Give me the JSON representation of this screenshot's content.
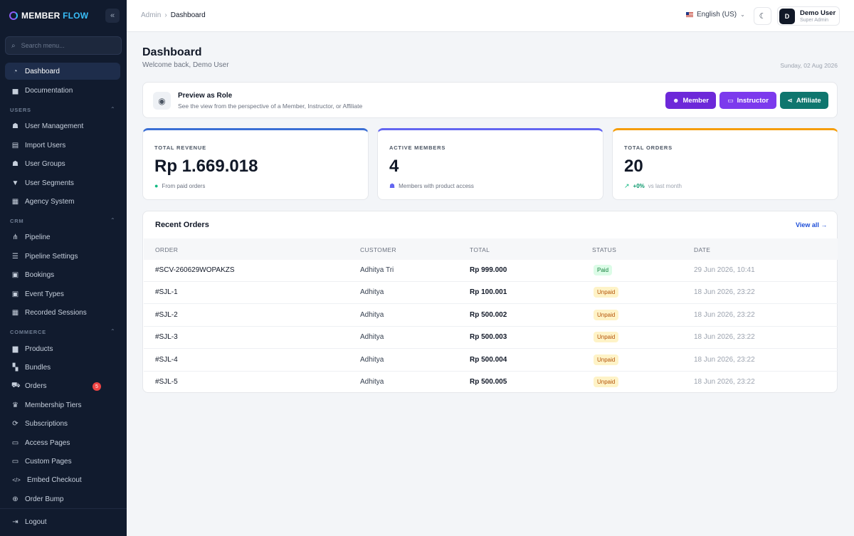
{
  "app": {
    "brand_main": "MEMBER",
    "brand_accent": "FLOW",
    "collapse_icon": "«"
  },
  "sidebar": {
    "search_placeholder": "Search menu...",
    "items": [
      {
        "id": "dashboard",
        "label": "Dashboard",
        "icon": "dashboard-icon",
        "glyph": "◔",
        "active": true
      },
      {
        "id": "documentation",
        "label": "Documentation",
        "icon": "book-icon",
        "glyph": "▅"
      },
      {
        "id": "user-management",
        "label": "User Management",
        "icon": "users-icon",
        "glyph": "☗"
      },
      {
        "id": "import-users",
        "label": "Import Users",
        "icon": "file-import-icon",
        "glyph": "▤"
      },
      {
        "id": "user-groups",
        "label": "User Groups",
        "icon": "group-icon",
        "glyph": "☗"
      },
      {
        "id": "user-segments",
        "label": "User Segments",
        "icon": "filter-icon",
        "glyph": "▼"
      },
      {
        "id": "agency-system",
        "label": "Agency System",
        "icon": "building-icon",
        "glyph": "▦"
      },
      {
        "id": "pipeline",
        "label": "Pipeline",
        "icon": "pipeline-icon",
        "glyph": "⋔"
      },
      {
        "id": "pipeline-settings",
        "label": "Pipeline Settings",
        "icon": "sliders-icon",
        "glyph": "☰"
      },
      {
        "id": "bookings",
        "label": "Bookings",
        "icon": "calendar-icon",
        "glyph": "▣"
      },
      {
        "id": "event-types",
        "label": "Event Types",
        "icon": "calendar-check-icon",
        "glyph": "▣"
      },
      {
        "id": "recorded-sessions",
        "label": "Recorded Sessions",
        "icon": "film-icon",
        "glyph": "▦"
      },
      {
        "id": "products",
        "label": "Products",
        "icon": "box-icon",
        "glyph": "▆"
      },
      {
        "id": "bundles",
        "label": "Bundles",
        "icon": "boxes-icon",
        "glyph": "▚"
      },
      {
        "id": "orders",
        "label": "Orders",
        "icon": "cart-icon",
        "glyph": "⛟",
        "badge": "5"
      },
      {
        "id": "membership-tiers",
        "label": "Membership Tiers",
        "icon": "crown-icon",
        "glyph": "♛"
      },
      {
        "id": "subscriptions",
        "label": "Subscriptions",
        "icon": "refresh-icon",
        "glyph": "⟳"
      },
      {
        "id": "access-pages",
        "label": "Access Pages",
        "icon": "pages-icon",
        "glyph": "▭"
      },
      {
        "id": "custom-pages",
        "label": "Custom Pages",
        "icon": "copy-icon",
        "glyph": "▭"
      },
      {
        "id": "embed-checkout",
        "label": "Embed Checkout",
        "icon": "code-icon",
        "glyph": "</>"
      },
      {
        "id": "order-bump",
        "label": "Order Bump",
        "icon": "plus-circle-icon",
        "glyph": "⊕"
      },
      {
        "id": "logout",
        "label": "Logout",
        "icon": "logout-icon",
        "glyph": "⇥"
      }
    ],
    "sections": [
      {
        "label": "USERS"
      },
      {
        "label": "CRM"
      },
      {
        "label": "COMMERCE"
      }
    ]
  },
  "topbar": {
    "breadcrumb_root": "Admin",
    "breadcrumb_sep": "›",
    "breadcrumb_current": "Dashboard",
    "language": "English (US)",
    "user_initial": "D",
    "user_name": "Demo User",
    "user_role": "Super Admin"
  },
  "page": {
    "title": "Dashboard",
    "subtitle": "Welcome back, Demo User",
    "date": "Sunday, 02 Aug 2026"
  },
  "preview": {
    "title": "Preview as Role",
    "subtitle": "See the view from the perspective of a Member, Instructor, or Affiliate",
    "buttons": [
      {
        "label": "Member",
        "color": "#6d28d9"
      },
      {
        "label": "Instructor",
        "color": "#7c3aed"
      },
      {
        "label": "Affiliate",
        "color": "#0f766e"
      }
    ]
  },
  "stats": [
    {
      "label": "TOTAL REVENUE",
      "value": "Rp 1.669.018",
      "note": "From paid orders",
      "accent": "#3b6fd4"
    },
    {
      "label": "ACTIVE MEMBERS",
      "value": "4",
      "note": "Members with product access",
      "accent": "#6366f1"
    },
    {
      "label": "TOTAL ORDERS",
      "value": "20",
      "trend": "+0%",
      "note": "vs last month",
      "accent": "#f59e0b"
    }
  ],
  "orders": {
    "title": "Recent Orders",
    "view_all": "View all →",
    "columns": [
      "ORDER",
      "CUSTOMER",
      "TOTAL",
      "STATUS",
      "DATE"
    ],
    "rows": [
      {
        "order": "#SCV-260629WOPAKZS",
        "customer": "Adhitya Tri",
        "total": "Rp 999.000",
        "status": "Paid",
        "date": "29 Jun 2026, 10:41"
      },
      {
        "order": "#SJL-1",
        "customer": "Adhitya",
        "total": "Rp 100.001",
        "status": "Unpaid",
        "date": "18 Jun 2026, 23:22"
      },
      {
        "order": "#SJL-2",
        "customer": "Adhitya",
        "total": "Rp 500.002",
        "status": "Unpaid",
        "date": "18 Jun 2026, 23:22"
      },
      {
        "order": "#SJL-3",
        "customer": "Adhitya",
        "total": "Rp 500.003",
        "status": "Unpaid",
        "date": "18 Jun 2026, 23:22"
      },
      {
        "order": "#SJL-4",
        "customer": "Adhitya",
        "total": "Rp 500.004",
        "status": "Unpaid",
        "date": "18 Jun 2026, 23:22"
      },
      {
        "order": "#SJL-5",
        "customer": "Adhitya",
        "total": "Rp 500.005",
        "status": "Unpaid",
        "date": "18 Jun 2026, 23:22"
      }
    ]
  }
}
